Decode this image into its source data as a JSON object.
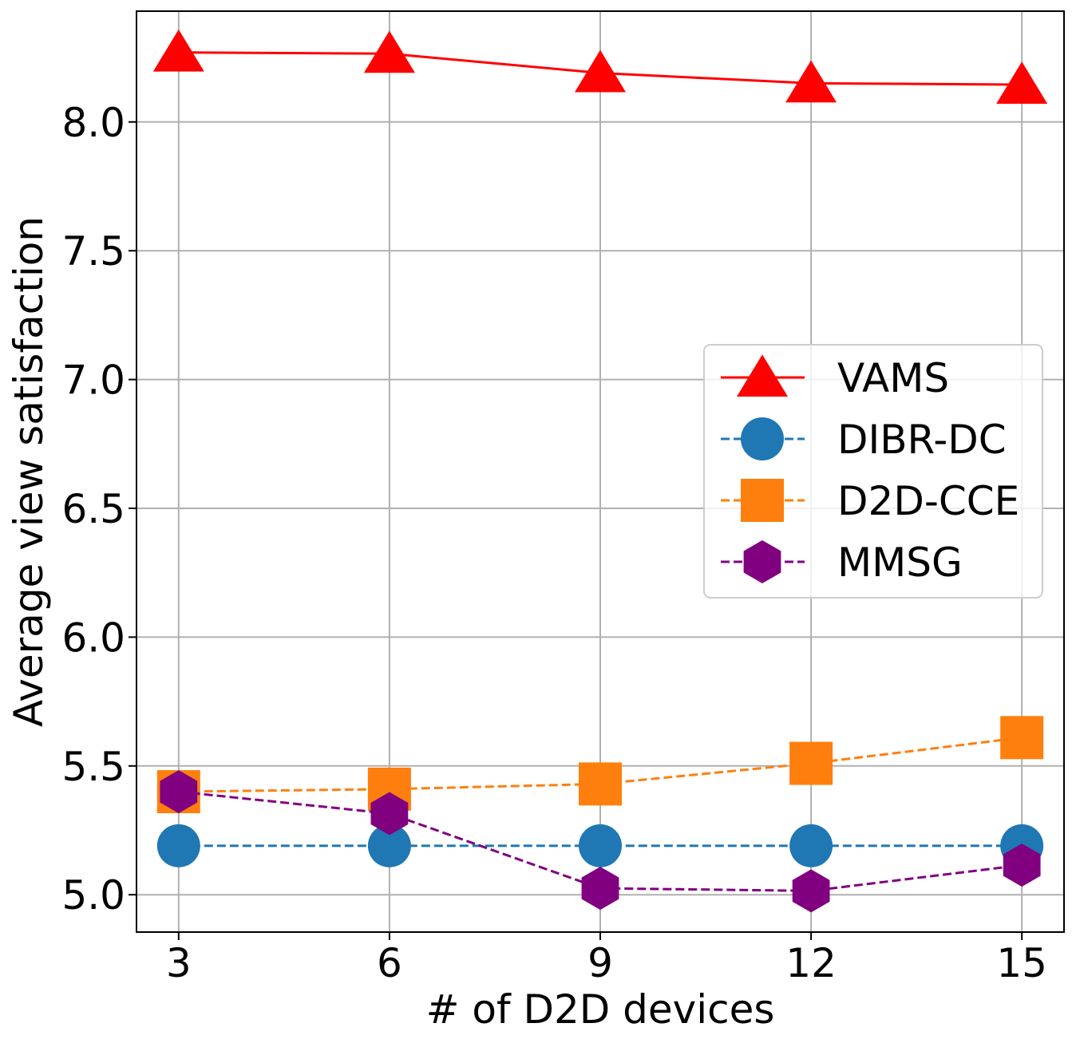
{
  "chart_data": {
    "type": "line",
    "title": "",
    "xlabel": "# of D2D devices",
    "ylabel": "Average view satisfaction",
    "x": [
      3,
      6,
      9,
      12,
      15
    ],
    "x_ticks": [
      "3",
      "6",
      "9",
      "12",
      "15"
    ],
    "y_ticks": [
      "5.0",
      "5.5",
      "6.0",
      "6.5",
      "7.0",
      "7.5",
      "8.0"
    ],
    "y_tick_values": [
      5.0,
      5.5,
      6.0,
      6.5,
      7.0,
      7.5,
      8.0
    ],
    "xlim": [
      2.4,
      15.6
    ],
    "ylim": [
      4.855,
      8.43
    ],
    "grid": true,
    "legend_position": "center-right",
    "series": [
      {
        "name": "VAMS",
        "values": [
          8.27,
          8.265,
          8.19,
          8.15,
          8.145
        ],
        "color": "#ff0000",
        "marker": "triangle",
        "line_style": "solid"
      },
      {
        "name": "DIBR-DC",
        "values": [
          5.19,
          5.19,
          5.19,
          5.19,
          5.19
        ],
        "color": "#1f77b4",
        "marker": "circle",
        "line_style": "dashed"
      },
      {
        "name": "D2D-CCE",
        "values": [
          5.4,
          5.41,
          5.43,
          5.51,
          5.61
        ],
        "color": "#ff7f0e",
        "marker": "square",
        "line_style": "dashed"
      },
      {
        "name": "MMSG",
        "values": [
          5.4,
          5.315,
          5.025,
          5.015,
          5.115
        ],
        "color": "#800080",
        "marker": "hexagon",
        "line_style": "dashed"
      }
    ]
  }
}
